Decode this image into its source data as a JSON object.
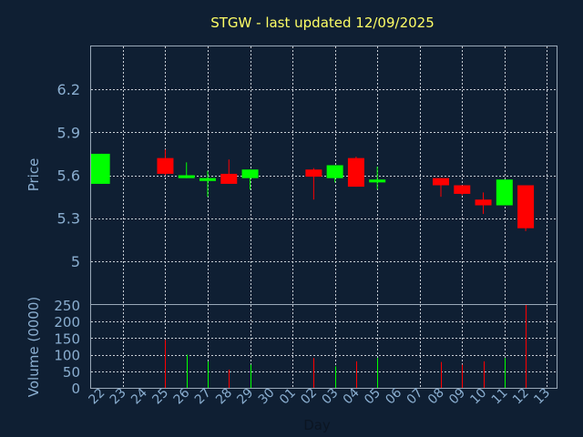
{
  "chart_data": [
    {
      "type": "candlestick",
      "title": "STGW - last updated 12/09/2025",
      "ylabel": "Price",
      "ylim": [
        4.7,
        6.5
      ],
      "yticks": [
        5,
        5.3,
        5.6,
        5.9,
        6.2
      ],
      "ytick_labels": [
        "5",
        "5.3",
        "5.6",
        "5.9",
        "6.2"
      ],
      "grid": true,
      "up_color": "#00ff00",
      "down_color": "#ff0000",
      "days": [
        "22",
        "23",
        "24",
        "25",
        "26",
        "27",
        "28",
        "29",
        "30",
        "01",
        "02",
        "03",
        "04",
        "05",
        "06",
        "07",
        "08",
        "09",
        "10",
        "11",
        "12",
        "13"
      ],
      "candles": [
        {
          "day": "22",
          "open": 5.54,
          "high": 5.75,
          "low": 5.54,
          "close": 5.75
        },
        {
          "day": "25",
          "open": 5.72,
          "high": 5.78,
          "low": 5.6,
          "close": 5.61
        },
        {
          "day": "26",
          "open": 5.58,
          "high": 5.69,
          "low": 5.58,
          "close": 5.6
        },
        {
          "day": "27",
          "open": 5.56,
          "high": 5.63,
          "low": 5.45,
          "close": 5.58
        },
        {
          "day": "28",
          "open": 5.61,
          "high": 5.71,
          "low": 5.54,
          "close": 5.54
        },
        {
          "day": "29",
          "open": 5.58,
          "high": 5.64,
          "low": 5.5,
          "close": 5.64
        },
        {
          "day": "02",
          "open": 5.64,
          "high": 5.65,
          "low": 5.43,
          "close": 5.59
        },
        {
          "day": "03",
          "open": 5.58,
          "high": 5.67,
          "low": 5.55,
          "close": 5.67
        },
        {
          "day": "04",
          "open": 5.72,
          "high": 5.73,
          "low": 5.52,
          "close": 5.52
        },
        {
          "day": "05",
          "open": 5.55,
          "high": 5.66,
          "low": 5.5,
          "close": 5.57
        },
        {
          "day": "08",
          "open": 5.58,
          "high": 5.58,
          "low": 5.45,
          "close": 5.53
        },
        {
          "day": "09",
          "open": 5.53,
          "high": 5.53,
          "low": 5.46,
          "close": 5.47
        },
        {
          "day": "10",
          "open": 5.43,
          "high": 5.48,
          "low": 5.33,
          "close": 5.39
        },
        {
          "day": "11",
          "open": 5.39,
          "high": 5.57,
          "low": 5.39,
          "close": 5.57
        },
        {
          "day": "12",
          "open": 5.53,
          "high": 5.53,
          "low": 5.21,
          "close": 5.23
        }
      ]
    },
    {
      "type": "bar",
      "ylabel": "Volume (0000)",
      "xlabel": "Day",
      "ylim": [
        0,
        250
      ],
      "yticks": [
        0,
        50,
        100,
        150,
        200,
        250
      ],
      "ytick_labels": [
        "0",
        "50",
        "100",
        "150",
        "200",
        "250"
      ],
      "grid": true,
      "bars": [
        {
          "day": "22",
          "value": 0,
          "color": "#00ff00"
        },
        {
          "day": "25",
          "value": 145,
          "color": "#ff0000"
        },
        {
          "day": "26",
          "value": 100,
          "color": "#00ff00"
        },
        {
          "day": "27",
          "value": 80,
          "color": "#00ff00"
        },
        {
          "day": "28",
          "value": 55,
          "color": "#ff0000"
        },
        {
          "day": "29",
          "value": 70,
          "color": "#00ff00"
        },
        {
          "day": "02",
          "value": 90,
          "color": "#ff0000"
        },
        {
          "day": "03",
          "value": 65,
          "color": "#00ff00"
        },
        {
          "day": "04",
          "value": 80,
          "color": "#ff0000"
        },
        {
          "day": "05",
          "value": 90,
          "color": "#00ff00"
        },
        {
          "day": "08",
          "value": 78,
          "color": "#ff0000"
        },
        {
          "day": "09",
          "value": 70,
          "color": "#ff0000"
        },
        {
          "day": "10",
          "value": 80,
          "color": "#ff0000"
        },
        {
          "day": "11",
          "value": 90,
          "color": "#00ff00"
        },
        {
          "day": "12",
          "value": 250,
          "color": "#ff0000"
        }
      ]
    }
  ]
}
